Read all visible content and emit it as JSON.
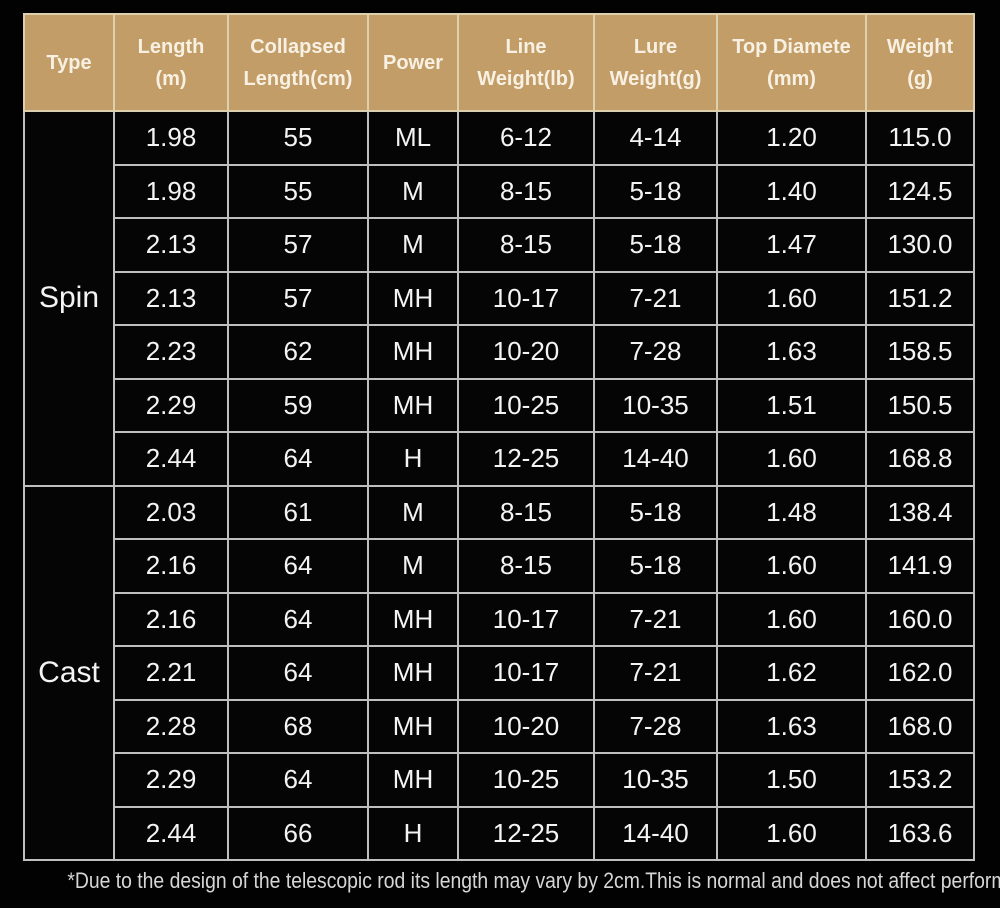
{
  "table": {
    "columns": [
      "Type",
      "Length\n(m)",
      "Collapsed\nLength(cm)",
      "Power",
      "Line\nWeight(lb)",
      "Lure\nWeight(g)",
      "Top Diamete\n(mm)",
      "Weight\n(g)"
    ],
    "groups": [
      {
        "type": "Spin",
        "rows": [
          [
            "1.98",
            "55",
            "ML",
            "6-12",
            "4-14",
            "1.20",
            "115.0"
          ],
          [
            "1.98",
            "55",
            "M",
            "8-15",
            "5-18",
            "1.40",
            "124.5"
          ],
          [
            "2.13",
            "57",
            "M",
            "8-15",
            "5-18",
            "1.47",
            "130.0"
          ],
          [
            "2.13",
            "57",
            "MH",
            "10-17",
            "7-21",
            "1.60",
            "151.2"
          ],
          [
            "2.23",
            "62",
            "MH",
            "10-20",
            "7-28",
            "1.63",
            "158.5"
          ],
          [
            "2.29",
            "59",
            "MH",
            "10-25",
            "10-35",
            "1.51",
            "150.5"
          ],
          [
            "2.44",
            "64",
            "H",
            "12-25",
            "14-40",
            "1.60",
            "168.8"
          ]
        ]
      },
      {
        "type": "Cast",
        "rows": [
          [
            "2.03",
            "61",
            "M",
            "8-15",
            "5-18",
            "1.48",
            "138.4"
          ],
          [
            "2.16",
            "64",
            "M",
            "8-15",
            "5-18",
            "1.60",
            "141.9"
          ],
          [
            "2.16",
            "64",
            "MH",
            "10-17",
            "7-21",
            "1.60",
            "160.0"
          ],
          [
            "2.21",
            "64",
            "MH",
            "10-17",
            "7-21",
            "1.62",
            "162.0"
          ],
          [
            "2.28",
            "68",
            "MH",
            "10-20",
            "7-28",
            "1.63",
            "168.0"
          ],
          [
            "2.29",
            "64",
            "MH",
            "10-25",
            "10-35",
            "1.50",
            "153.2"
          ],
          [
            "2.44",
            "66",
            "H",
            "12-25",
            "14-40",
            "1.60",
            "163.6"
          ]
        ]
      }
    ]
  },
  "footnote": "*Due to the design of the telescopic rod its length may vary by 2cm.This is normal and does not affect performance.",
  "colors": {
    "page_bg": "#020203",
    "header_bg": "#c29d68",
    "header_text": "#f8f1e3",
    "header_sep": "#ddd0ae",
    "grid": "#bfbfbf",
    "cell_bg": "#050505",
    "body_text": "#f4f4f4",
    "footnote_text": "#d6d6d6"
  }
}
